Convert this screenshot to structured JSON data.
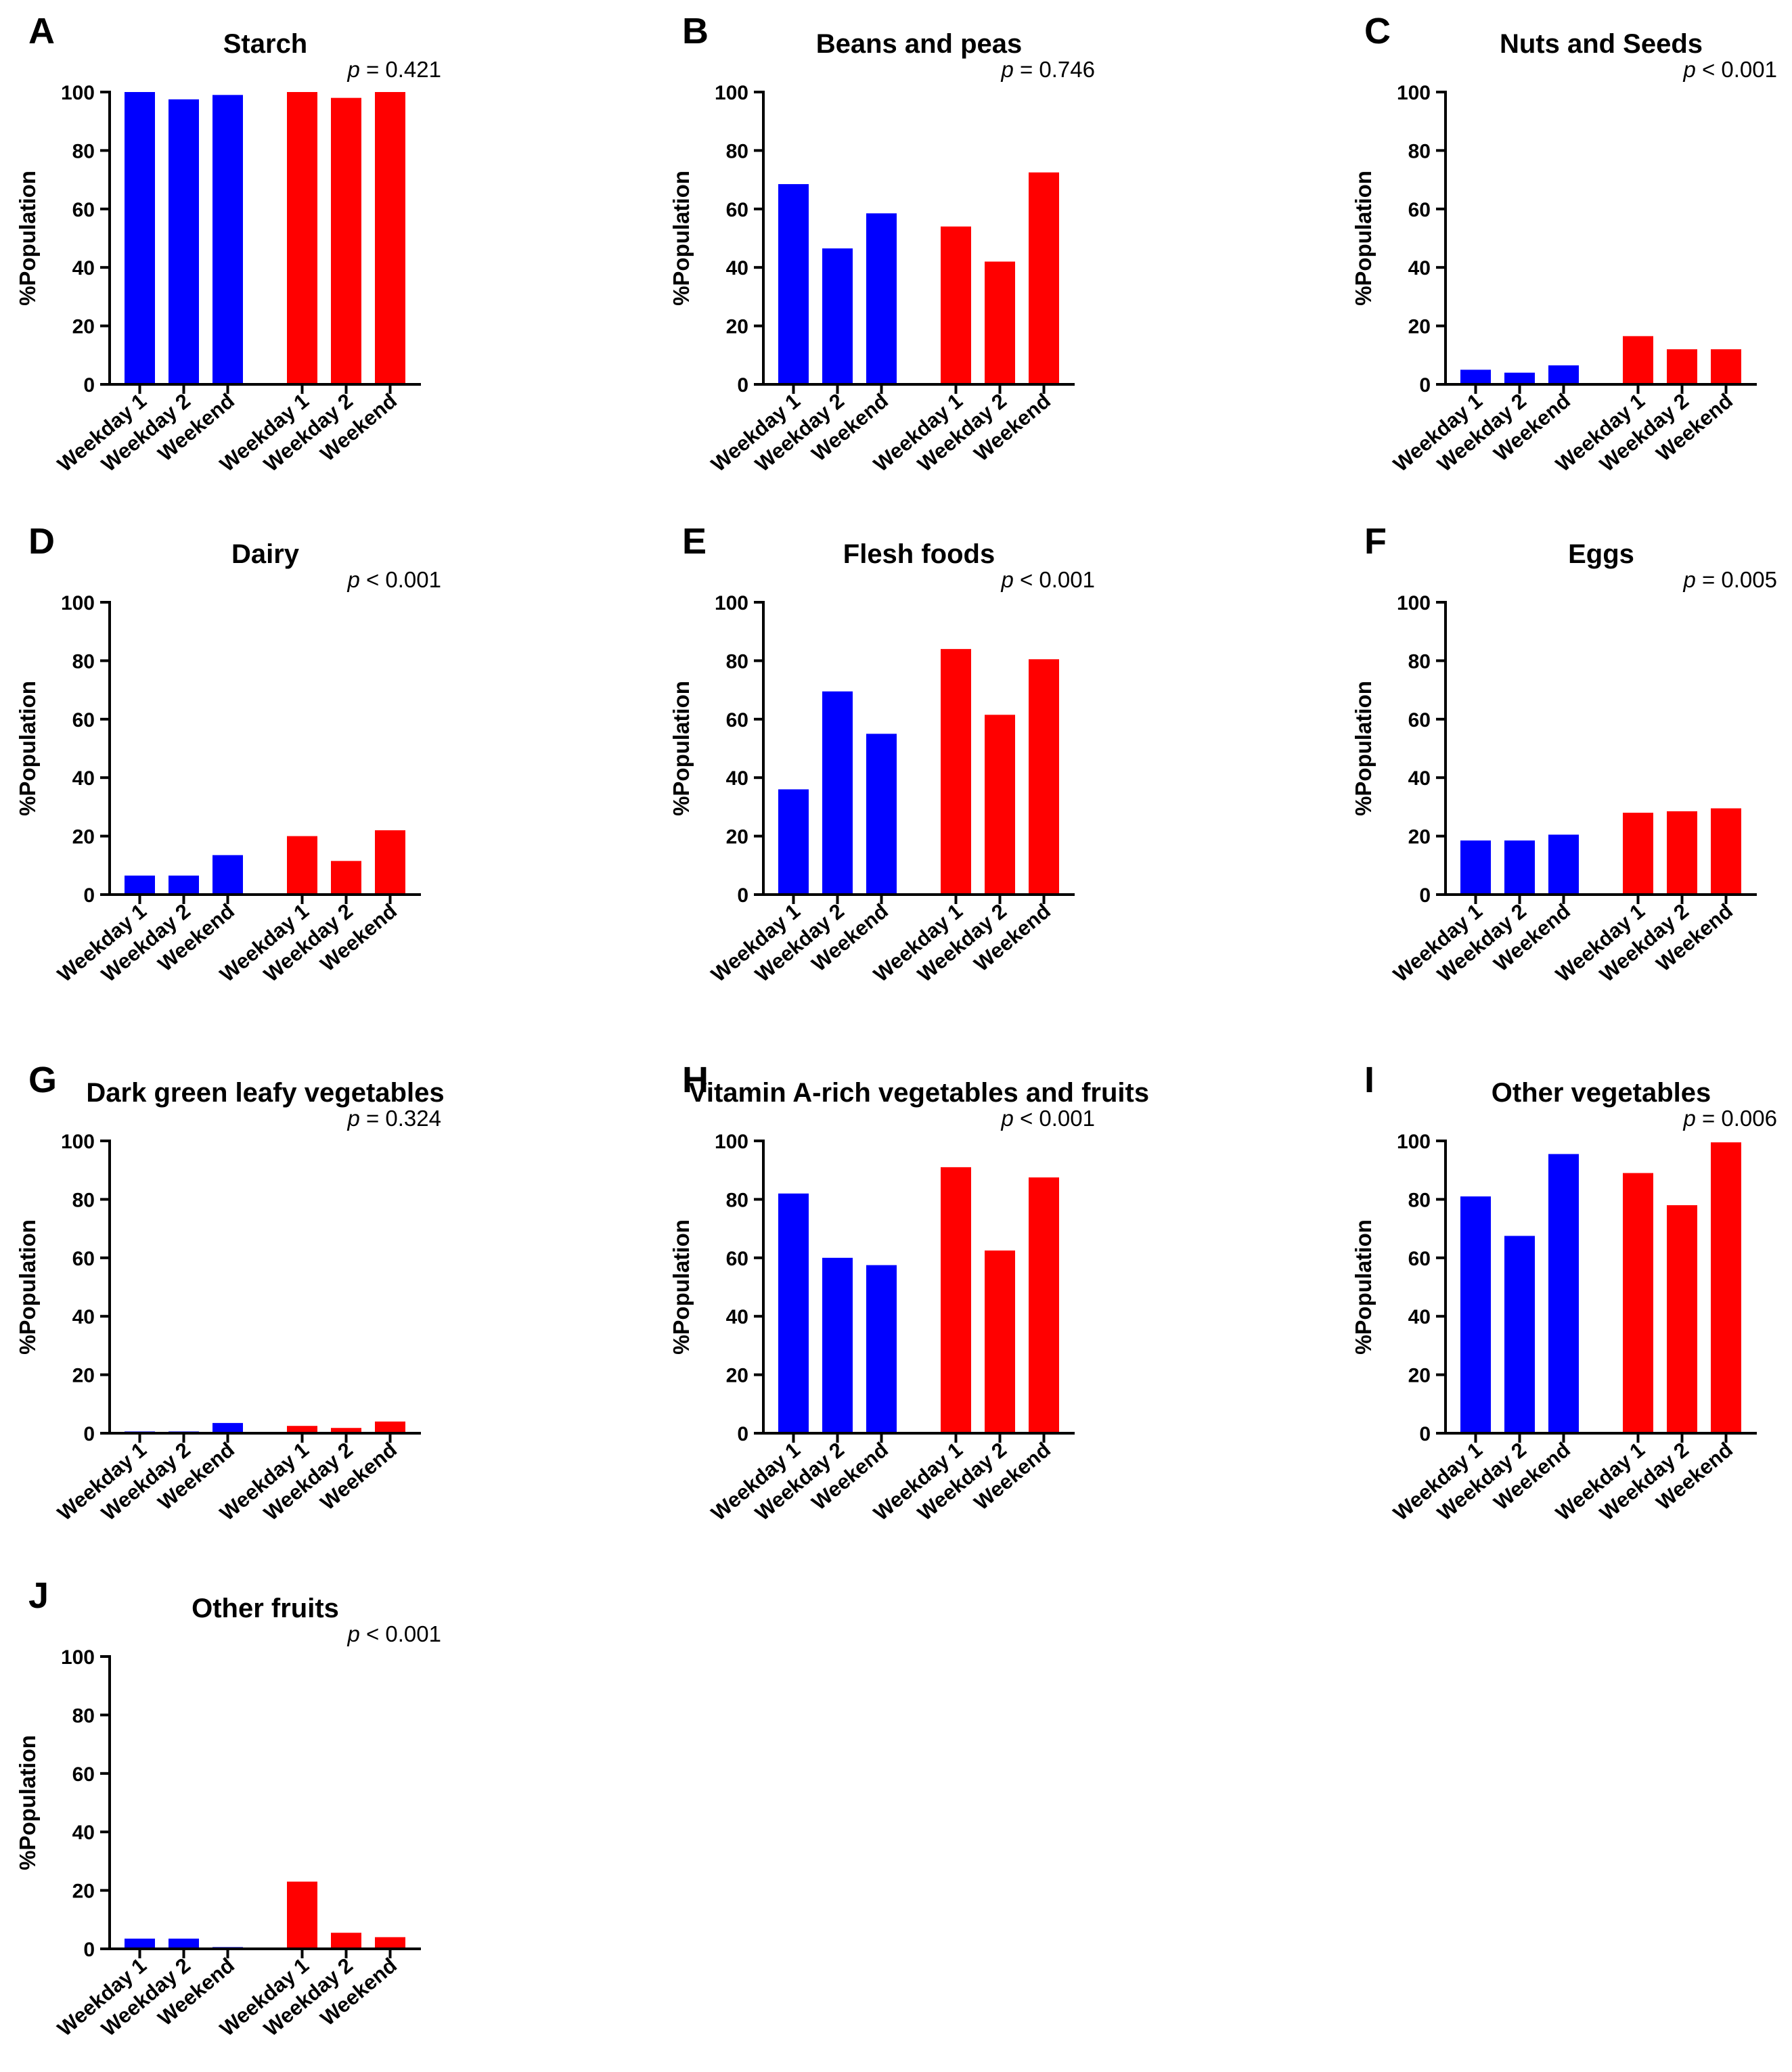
{
  "figure": {
    "ylabel": "%Population",
    "categories": [
      "Weekday 1",
      "Weekday 2",
      "Weekend",
      "Weekday 1",
      "Weekday 2",
      "Weekend"
    ],
    "group_colors": [
      "#0000FF",
      "#0000FF",
      "#0000FF",
      "#FF0000",
      "#FF0000",
      "#FF0000"
    ],
    "yticks": [
      "0",
      "20",
      "40",
      "60",
      "80",
      "100"
    ]
  },
  "chart_data": [
    {
      "type": "bar",
      "letter": "A",
      "title": "Starch",
      "p_symbol": "p",
      "p_rest": " = 0.421",
      "categories": [
        "Weekday 1",
        "Weekday 2",
        "Weekend",
        "Weekday 1",
        "Weekday 2",
        "Weekend"
      ],
      "values": [
        100,
        97.5,
        99,
        100,
        98,
        100
      ],
      "ylabel": "%Population",
      "ylim": [
        0,
        100
      ]
    },
    {
      "type": "bar",
      "letter": "B",
      "title": "Beans and peas",
      "p_symbol": "p",
      "p_rest": " = 0.746",
      "categories": [
        "Weekday 1",
        "Weekday 2",
        "Weekend",
        "Weekday 1",
        "Weekday 2",
        "Weekend"
      ],
      "values": [
        68.5,
        46.5,
        58.5,
        54,
        42,
        72.5
      ],
      "ylabel": "%Population",
      "ylim": [
        0,
        100
      ]
    },
    {
      "type": "bar",
      "letter": "C",
      "title": "Nuts and Seeds",
      "p_symbol": "p",
      "p_rest": " < 0.001",
      "categories": [
        "Weekday 1",
        "Weekday 2",
        "Weekend",
        "Weekday 1",
        "Weekday 2",
        "Weekend"
      ],
      "values": [
        5,
        4,
        6.5,
        16.5,
        12,
        12
      ],
      "ylabel": "%Population",
      "ylim": [
        0,
        100
      ]
    },
    {
      "type": "bar",
      "letter": "D",
      "title": "Dairy",
      "p_symbol": "p",
      "p_rest": " < 0.001",
      "categories": [
        "Weekday 1",
        "Weekday 2",
        "Weekend",
        "Weekday 1",
        "Weekday 2",
        "Weekend"
      ],
      "values": [
        6.5,
        6.5,
        13.5,
        20,
        11.5,
        22
      ],
      "ylabel": "%Population",
      "ylim": [
        0,
        100
      ]
    },
    {
      "type": "bar",
      "letter": "E",
      "title": "Flesh foods",
      "p_symbol": "p",
      "p_rest": " < 0.001",
      "categories": [
        "Weekday 1",
        "Weekday 2",
        "Weekend",
        "Weekday 1",
        "Weekday 2",
        "Weekend"
      ],
      "values": [
        36,
        69.5,
        55,
        84,
        61.5,
        80.5
      ],
      "ylabel": "%Population",
      "ylim": [
        0,
        100
      ]
    },
    {
      "type": "bar",
      "letter": "F",
      "title": "Eggs",
      "p_symbol": "p",
      "p_rest": " = 0.005",
      "categories": [
        "Weekday 1",
        "Weekday 2",
        "Weekend",
        "Weekday 1",
        "Weekday 2",
        "Weekend"
      ],
      "values": [
        18.5,
        18.5,
        20.5,
        28,
        28.5,
        29.5
      ],
      "ylabel": "%Population",
      "ylim": [
        0,
        100
      ]
    },
    {
      "type": "bar",
      "letter": "G",
      "title": "Dark green leafy vegetables",
      "p_symbol": "p",
      "p_rest": " = 0.324",
      "categories": [
        "Weekday 1",
        "Weekday 2",
        "Weekend",
        "Weekday 1",
        "Weekday 2",
        "Weekend"
      ],
      "values": [
        0.6,
        0.6,
        3.5,
        2.5,
        1.8,
        4
      ],
      "ylabel": "%Population",
      "ylim": [
        0,
        100
      ]
    },
    {
      "type": "bar",
      "letter": "H",
      "title": "Vitamin A-rich vegetables and fruits",
      "p_symbol": "p",
      "p_rest": " < 0.001",
      "categories": [
        "Weekday 1",
        "Weekday 2",
        "Weekend",
        "Weekday 1",
        "Weekday 2",
        "Weekend"
      ],
      "values": [
        82,
        60,
        57.5,
        91,
        62.5,
        87.5
      ],
      "ylabel": "%Population",
      "ylim": [
        0,
        100
      ]
    },
    {
      "type": "bar",
      "letter": "I",
      "title": "Other vegetables",
      "p_symbol": "p",
      "p_rest": " = 0.006",
      "categories": [
        "Weekday 1",
        "Weekday 2",
        "Weekend",
        "Weekday 1",
        "Weekday 2",
        "Weekend"
      ],
      "values": [
        81,
        67.5,
        95.5,
        89,
        78,
        99.5
      ],
      "ylabel": "%Population",
      "ylim": [
        0,
        100
      ]
    },
    {
      "type": "bar",
      "letter": "J",
      "title": "Other fruits",
      "p_symbol": "p",
      "p_rest": " < 0.001",
      "categories": [
        "Weekday 1",
        "Weekday 2",
        "Weekend",
        "Weekday 1",
        "Weekday 2",
        "Weekend"
      ],
      "values": [
        3.5,
        3.5,
        0.6,
        23,
        5.5,
        4
      ],
      "ylabel": "%Population",
      "ylim": [
        0,
        100
      ]
    }
  ]
}
